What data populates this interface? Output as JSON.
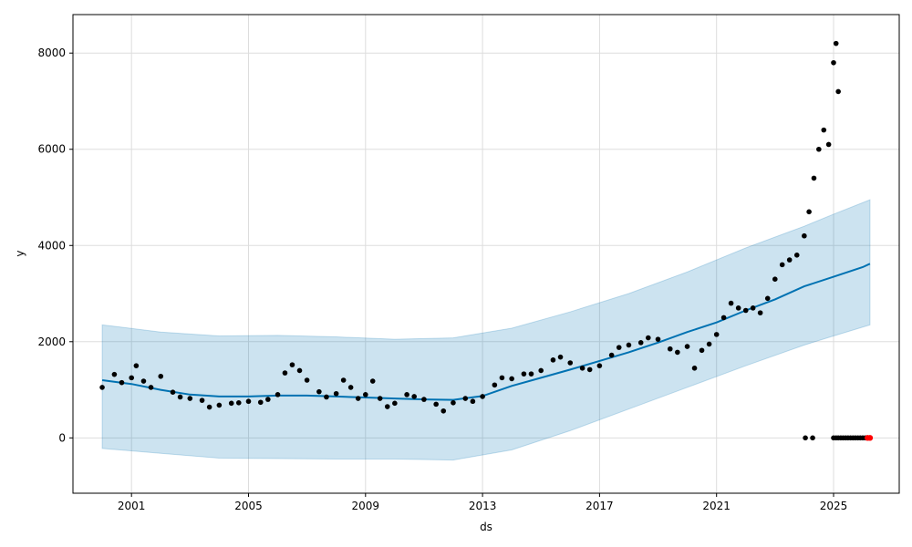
{
  "chart_data": {
    "type": "scatter",
    "title": "",
    "xlabel": "ds",
    "ylabel": "y",
    "xlim": [
      "1999-01-01",
      "2027-04-01"
    ],
    "ylim": [
      -1150,
      8800
    ],
    "grid": true,
    "x_ticks": [
      "2001",
      "2005",
      "2009",
      "2013",
      "2017",
      "2021",
      "2025"
    ],
    "y_ticks": [
      0,
      2000,
      4000,
      6000,
      8000
    ],
    "colors": {
      "observed": "#000000",
      "forecast": "#0072B2",
      "interval": "#0072B2",
      "future_points": "#ff0000",
      "grid": "#dddddd"
    },
    "series": [
      {
        "kind": "observed points",
        "points": [
          [
            "2000-01-01",
            1050
          ],
          [
            "2000-06-01",
            1320
          ],
          [
            "2000-09-01",
            1150
          ],
          [
            "2001-01-01",
            1250
          ],
          [
            "2001-03-01",
            1500
          ],
          [
            "2001-06-01",
            1180
          ],
          [
            "2001-09-01",
            1050
          ],
          [
            "2002-01-01",
            1280
          ],
          [
            "2002-06-01",
            950
          ],
          [
            "2002-09-01",
            850
          ],
          [
            "2003-01-01",
            820
          ],
          [
            "2003-06-01",
            780
          ],
          [
            "2003-09-01",
            640
          ],
          [
            "2004-01-01",
            680
          ],
          [
            "2004-06-01",
            720
          ],
          [
            "2004-09-01",
            730
          ],
          [
            "2005-01-01",
            760
          ],
          [
            "2005-06-01",
            740
          ],
          [
            "2005-09-01",
            800
          ],
          [
            "2006-01-01",
            900
          ],
          [
            "2006-04-01",
            1350
          ],
          [
            "2006-07-01",
            1520
          ],
          [
            "2006-10-01",
            1400
          ],
          [
            "2007-01-01",
            1200
          ],
          [
            "2007-06-01",
            960
          ],
          [
            "2007-09-01",
            850
          ],
          [
            "2008-01-01",
            920
          ],
          [
            "2008-04-01",
            1200
          ],
          [
            "2008-07-01",
            1050
          ],
          [
            "2008-10-01",
            820
          ],
          [
            "2009-01-01",
            900
          ],
          [
            "2009-04-01",
            1180
          ],
          [
            "2009-07-01",
            820
          ],
          [
            "2009-10-01",
            650
          ],
          [
            "2010-01-01",
            720
          ],
          [
            "2010-06-01",
            900
          ],
          [
            "2010-09-01",
            860
          ],
          [
            "2011-01-01",
            800
          ],
          [
            "2011-06-01",
            700
          ],
          [
            "2011-09-01",
            560
          ],
          [
            "2012-01-01",
            730
          ],
          [
            "2012-06-01",
            820
          ],
          [
            "2012-09-01",
            760
          ],
          [
            "2013-01-01",
            860
          ],
          [
            "2013-06-01",
            1100
          ],
          [
            "2013-09-01",
            1250
          ],
          [
            "2014-01-01",
            1230
          ],
          [
            "2014-06-01",
            1330
          ],
          [
            "2014-09-01",
            1330
          ],
          [
            "2015-01-01",
            1400
          ],
          [
            "2015-06-01",
            1620
          ],
          [
            "2015-09-01",
            1680
          ],
          [
            "2016-01-01",
            1560
          ],
          [
            "2016-06-01",
            1450
          ],
          [
            "2016-09-01",
            1420
          ],
          [
            "2017-01-01",
            1500
          ],
          [
            "2017-06-01",
            1720
          ],
          [
            "2017-09-01",
            1880
          ],
          [
            "2018-01-01",
            1930
          ],
          [
            "2018-06-01",
            1980
          ],
          [
            "2018-09-01",
            2080
          ],
          [
            "2019-01-01",
            2050
          ],
          [
            "2019-06-01",
            1850
          ],
          [
            "2019-09-01",
            1780
          ],
          [
            "2020-01-01",
            1900
          ],
          [
            "2020-04-01",
            1450
          ],
          [
            "2020-07-01",
            1820
          ],
          [
            "2020-10-01",
            1950
          ],
          [
            "2021-01-01",
            2150
          ],
          [
            "2021-04-01",
            2500
          ],
          [
            "2021-07-01",
            2800
          ],
          [
            "2021-10-01",
            2700
          ],
          [
            "2022-01-01",
            2650
          ],
          [
            "2022-04-01",
            2700
          ],
          [
            "2022-07-01",
            2600
          ],
          [
            "2022-10-01",
            2900
          ],
          [
            "2023-01-01",
            3300
          ],
          [
            "2023-04-01",
            3600
          ],
          [
            "2023-07-01",
            3700
          ],
          [
            "2023-10-01",
            3800
          ],
          [
            "2024-01-01",
            4200
          ],
          [
            "2024-03-01",
            4700
          ],
          [
            "2024-05-01",
            5400
          ],
          [
            "2024-07-01",
            6000
          ],
          [
            "2024-09-01",
            6400
          ],
          [
            "2024-11-01",
            6100
          ],
          [
            "2025-01-01",
            7800
          ],
          [
            "2025-02-01",
            8200
          ],
          [
            "2025-03-01",
            7200
          ]
        ]
      },
      {
        "kind": "forecast line",
        "points": [
          [
            "2000-01-01",
            1200
          ],
          [
            "2001-01-01",
            1120
          ],
          [
            "2002-01-01",
            1000
          ],
          [
            "2003-01-01",
            900
          ],
          [
            "2004-01-01",
            860
          ],
          [
            "2005-01-01",
            860
          ],
          [
            "2006-01-01",
            880
          ],
          [
            "2007-01-01",
            880
          ],
          [
            "2008-01-01",
            860
          ],
          [
            "2009-01-01",
            840
          ],
          [
            "2010-01-01",
            820
          ],
          [
            "2011-01-01",
            800
          ],
          [
            "2012-01-01",
            790
          ],
          [
            "2013-01-01",
            870
          ],
          [
            "2014-01-01",
            1080
          ],
          [
            "2015-01-01",
            1250
          ],
          [
            "2016-01-01",
            1420
          ],
          [
            "2017-01-01",
            1600
          ],
          [
            "2018-01-01",
            1780
          ],
          [
            "2019-01-01",
            1980
          ],
          [
            "2020-01-01",
            2200
          ],
          [
            "2021-01-01",
            2400
          ],
          [
            "2022-01-01",
            2650
          ],
          [
            "2023-01-01",
            2880
          ],
          [
            "2024-01-01",
            3150
          ],
          [
            "2025-01-01",
            3350
          ],
          [
            "2026-01-01",
            3550
          ],
          [
            "2026-04-01",
            3620
          ]
        ]
      },
      {
        "kind": "uncertainty interval",
        "upper": [
          [
            "2000-01-01",
            2350
          ],
          [
            "2002-01-01",
            2200
          ],
          [
            "2004-01-01",
            2120
          ],
          [
            "2006-01-01",
            2130
          ],
          [
            "2008-01-01",
            2100
          ],
          [
            "2010-01-01",
            2050
          ],
          [
            "2012-01-01",
            2080
          ],
          [
            "2014-01-01",
            2280
          ],
          [
            "2016-01-01",
            2620
          ],
          [
            "2018-01-01",
            3000
          ],
          [
            "2020-01-01",
            3450
          ],
          [
            "2022-01-01",
            3950
          ],
          [
            "2024-01-01",
            4400
          ],
          [
            "2025-01-01",
            4650
          ],
          [
            "2026-04-01",
            4950
          ]
        ],
        "lower": [
          [
            "2000-01-01",
            -220
          ],
          [
            "2002-01-01",
            -320
          ],
          [
            "2004-01-01",
            -420
          ],
          [
            "2006-01-01",
            -430
          ],
          [
            "2008-01-01",
            -440
          ],
          [
            "2010-01-01",
            -440
          ],
          [
            "2012-01-01",
            -460
          ],
          [
            "2014-01-01",
            -250
          ],
          [
            "2016-01-01",
            150
          ],
          [
            "2018-01-01",
            600
          ],
          [
            "2020-01-01",
            1050
          ],
          [
            "2022-01-01",
            1500
          ],
          [
            "2024-01-01",
            1930
          ],
          [
            "2025-01-01",
            2120
          ],
          [
            "2026-04-01",
            2350
          ]
        ]
      },
      {
        "kind": "near-zero points",
        "points": [
          [
            "2024-01-15",
            0
          ],
          [
            "2024-04-15",
            0
          ],
          [
            "2025-01-01",
            0
          ],
          [
            "2025-02-01",
            0
          ],
          [
            "2025-03-01",
            0
          ],
          [
            "2025-04-01",
            0
          ],
          [
            "2025-05-01",
            0
          ],
          [
            "2025-06-01",
            0
          ],
          [
            "2025-07-01",
            0
          ],
          [
            "2025-08-01",
            0
          ],
          [
            "2025-09-01",
            0
          ],
          [
            "2025-10-01",
            0
          ],
          [
            "2025-11-01",
            0
          ],
          [
            "2025-12-01",
            0
          ],
          [
            "2026-01-01",
            0
          ],
          [
            "2026-02-01",
            0
          ]
        ]
      },
      {
        "kind": "future points",
        "points": [
          [
            "2026-03-01",
            0
          ],
          [
            "2026-04-01",
            0
          ]
        ]
      }
    ]
  }
}
